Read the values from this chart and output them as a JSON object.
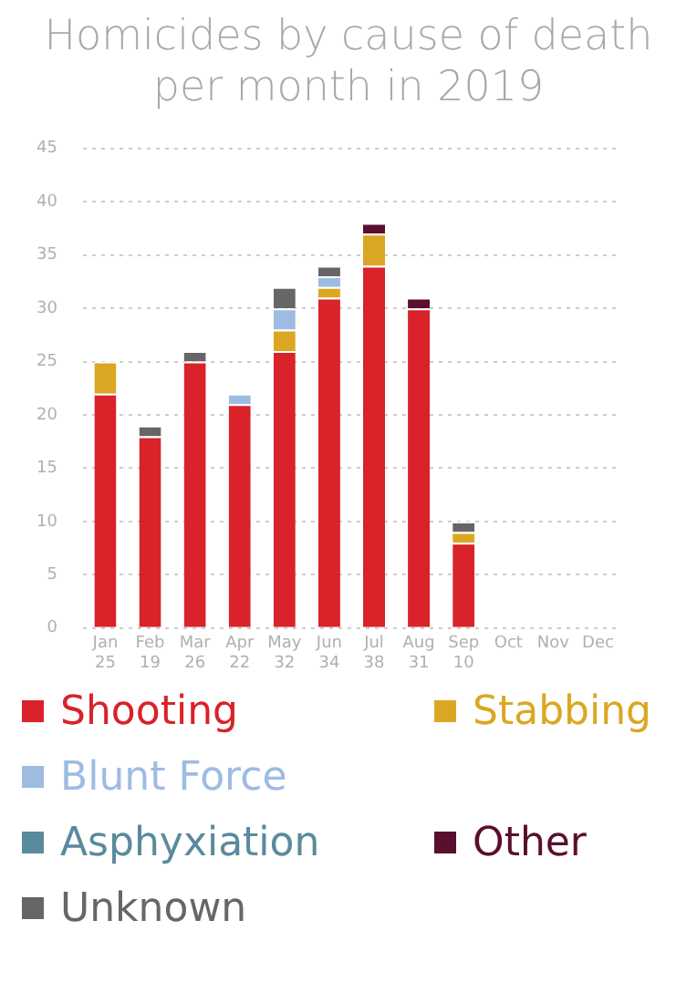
{
  "chart_data": {
    "type": "bar",
    "title": "Homicides by cause of death per month in 2019",
    "stacked": true,
    "legend": "bottom",
    "grid": "y",
    "categories": [
      "Jan",
      "Feb",
      "Mar",
      "Apr",
      "May",
      "Jun",
      "Jul",
      "Aug",
      "Sep",
      "Oct",
      "Nov",
      "Dec"
    ],
    "totals": [
      "25",
      "19",
      "26",
      "22",
      "32",
      "34",
      "38",
      "31",
      "10",
      null,
      null,
      null
    ],
    "ylim": [
      0,
      45
    ],
    "yticks": [
      0,
      5,
      10,
      15,
      20,
      25,
      30,
      35,
      40,
      45
    ],
    "series": [
      {
        "name": "Shooting",
        "color": "#d9222a",
        "values": [
          22,
          18,
          25,
          21,
          26,
          31,
          34,
          30,
          8,
          null,
          null,
          null
        ]
      },
      {
        "name": "Stabbing",
        "color": "#dba723",
        "values": [
          3,
          0,
          0,
          0,
          2,
          1,
          3,
          0,
          1,
          null,
          null,
          null
        ]
      },
      {
        "name": "Blunt Force",
        "color": "#9ebbe2",
        "values": [
          0,
          0,
          0,
          1,
          2,
          1,
          0,
          0,
          0,
          null,
          null,
          null
        ]
      },
      {
        "name": "Asphyxiation",
        "color": "#5a8a9e",
        "values": [
          0,
          0,
          0,
          0,
          0,
          0,
          0,
          0,
          0,
          null,
          null,
          null
        ]
      },
      {
        "name": "Other",
        "color": "#5a0f2e",
        "values": [
          0,
          0,
          0,
          0,
          0,
          0,
          1,
          1,
          0,
          null,
          null,
          null
        ]
      },
      {
        "name": "Unknown",
        "color": "#666666",
        "values": [
          0,
          1,
          1,
          0,
          2,
          1,
          0,
          0,
          1,
          null,
          null,
          null
        ]
      }
    ]
  }
}
